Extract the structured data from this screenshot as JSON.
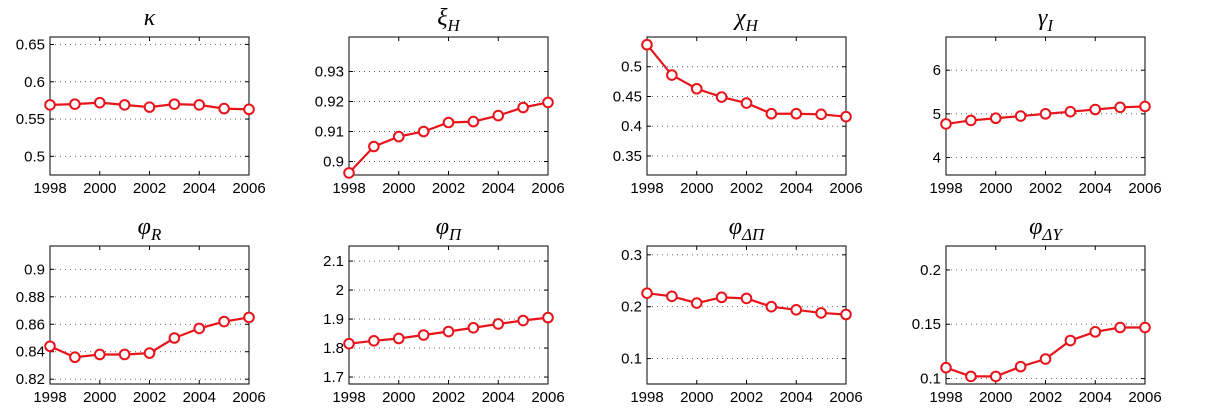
{
  "chart_data": [
    {
      "type": "line",
      "title": "κ",
      "x": [
        1998,
        1999,
        2000,
        2001,
        2002,
        2003,
        2004,
        2005,
        2006
      ],
      "series": [
        {
          "color": "#e8141b",
          "values": [
            0.569,
            0.57,
            0.572,
            0.569,
            0.566,
            0.57,
            0.569,
            0.564,
            0.563
          ]
        }
      ],
      "xlim": [
        1998,
        2006
      ],
      "xticks": [
        1998,
        2000,
        2002,
        2004,
        2006
      ],
      "ylim": [
        0.475,
        0.66
      ],
      "yticks": [
        0.5,
        0.55,
        0.6,
        0.65
      ],
      "grid": true
    },
    {
      "type": "line",
      "title": "ξ",
      "title_subscript": "H",
      "x": [
        1998,
        1999,
        2000,
        2001,
        2002,
        2003,
        2004,
        2005,
        2006
      ],
      "series": [
        {
          "color": "#e8141b",
          "values": [
            0.8962,
            0.905,
            0.9083,
            0.91,
            0.913,
            0.9133,
            0.9153,
            0.918,
            0.9197
          ]
        }
      ],
      "xlim": [
        1998,
        2006
      ],
      "xticks": [
        1998,
        2000,
        2002,
        2004,
        2006
      ],
      "ylim": [
        0.8955,
        0.9415
      ],
      "yticks": [
        0.9,
        0.91,
        0.92,
        0.93
      ],
      "grid": true
    },
    {
      "type": "line",
      "title": "χ",
      "title_subscript": "H",
      "x": [
        1998,
        1999,
        2000,
        2001,
        2002,
        2003,
        2004,
        2005,
        2006
      ],
      "series": [
        {
          "color": "#e8141b",
          "values": [
            0.537,
            0.486,
            0.463,
            0.449,
            0.439,
            0.421,
            0.421,
            0.42,
            0.416
          ]
        }
      ],
      "xlim": [
        1998,
        2006
      ],
      "xticks": [
        1998,
        2000,
        2002,
        2004,
        2006
      ],
      "ylim": [
        0.318,
        0.55
      ],
      "yticks": [
        0.35,
        0.4,
        0.45,
        0.5
      ],
      "grid": true
    },
    {
      "type": "line",
      "title": "γ",
      "title_subscript": "I",
      "x": [
        1998,
        1999,
        2000,
        2001,
        2002,
        2003,
        2004,
        2005,
        2006
      ],
      "series": [
        {
          "color": "#e8141b",
          "values": [
            4.77,
            4.85,
            4.9,
            4.95,
            5.0,
            5.05,
            5.1,
            5.15,
            5.17
          ]
        }
      ],
      "xlim": [
        1998,
        2006
      ],
      "xticks": [
        1998,
        2000,
        2002,
        2004,
        2006
      ],
      "ylim": [
        3.6,
        6.76
      ],
      "yticks": [
        4,
        5,
        6
      ],
      "grid": true
    },
    {
      "type": "line",
      "title": "φ",
      "title_subscript": "R",
      "x": [
        1998,
        1999,
        2000,
        2001,
        2002,
        2003,
        2004,
        2005,
        2006
      ],
      "series": [
        {
          "color": "#e8141b",
          "values": [
            0.844,
            0.836,
            0.838,
            0.838,
            0.839,
            0.85,
            0.857,
            0.862,
            0.865
          ]
        }
      ],
      "xlim": [
        1998,
        2006
      ],
      "xticks": [
        1998,
        2000,
        2002,
        2004,
        2006
      ],
      "ylim": [
        0.8165,
        0.917
      ],
      "yticks": [
        0.82,
        0.84,
        0.86,
        0.88,
        0.9
      ],
      "grid": true
    },
    {
      "type": "line",
      "title": "φ",
      "title_subscript": "Π",
      "x": [
        1998,
        1999,
        2000,
        2001,
        2002,
        2003,
        2004,
        2005,
        2006
      ],
      "series": [
        {
          "color": "#e8141b",
          "values": [
            1.815,
            1.825,
            1.833,
            1.845,
            1.857,
            1.87,
            1.883,
            1.895,
            1.905
          ]
        }
      ],
      "xlim": [
        1998,
        2006
      ],
      "xticks": [
        1998,
        2000,
        2002,
        2004,
        2006
      ],
      "ylim": [
        1.676,
        2.152
      ],
      "yticks": [
        1.7,
        1.8,
        1.9,
        2,
        2.1
      ],
      "grid": true
    },
    {
      "type": "line",
      "title": "φ",
      "title_subscript": "ΔΠ",
      "x": [
        1998,
        1999,
        2000,
        2001,
        2002,
        2003,
        2004,
        2005,
        2006
      ],
      "series": [
        {
          "color": "#e8141b",
          "values": [
            0.226,
            0.22,
            0.207,
            0.218,
            0.216,
            0.2,
            0.194,
            0.188,
            0.185
          ]
        }
      ],
      "xlim": [
        1998,
        2006
      ],
      "xticks": [
        1998,
        2000,
        2002,
        2004,
        2006
      ],
      "ylim": [
        0.051,
        0.317
      ],
      "yticks": [
        0.1,
        0.2,
        0.3
      ],
      "grid": true
    },
    {
      "type": "line",
      "title": "φ",
      "title_subscript": "ΔY",
      "x": [
        1998,
        1999,
        2000,
        2001,
        2002,
        2003,
        2004,
        2005,
        2006
      ],
      "series": [
        {
          "color": "#e8141b",
          "values": [
            0.11,
            0.102,
            0.102,
            0.111,
            0.118,
            0.135,
            0.143,
            0.147,
            0.147
          ]
        }
      ],
      "xlim": [
        1998,
        2006
      ],
      "xticks": [
        1998,
        2000,
        2002,
        2004,
        2006
      ],
      "ylim": [
        0.095,
        0.222
      ],
      "yticks": [
        0.1,
        0.15,
        0.2
      ],
      "grid": true
    }
  ]
}
